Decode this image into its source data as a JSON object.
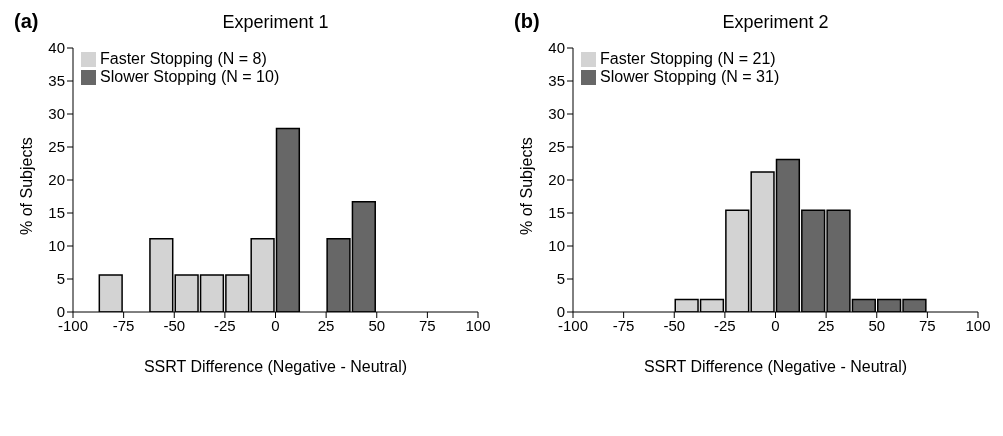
{
  "chart_data": [
    {
      "type": "histogram",
      "title": "Experiment 1",
      "xlabel": "SSRT Difference (Negative - Neutral)",
      "ylabel": "% of Subjects",
      "annotations": [
        "(a)"
      ],
      "bins": [
        -87.5,
        -75,
        -62.5,
        -50,
        -37.5,
        -25,
        -12.5,
        0,
        12.5,
        25,
        37.5,
        50
      ],
      "series": [
        {
          "name": "Slower Stopping (N = 10)",
          "color": "#676767",
          "values": [
            null,
            null,
            null,
            null,
            null,
            null,
            null,
            27.8,
            null,
            11.1,
            16.7
          ]
        },
        {
          "name": "Faster Stopping (N = 8)",
          "color": "#d3d3d3",
          "values": [
            5.6,
            null,
            11.1,
            5.6,
            5.6,
            5.6,
            11.1,
            null,
            null,
            null,
            null
          ]
        }
      ],
      "xlim": [
        -100,
        100
      ],
      "xticks": [
        -100,
        -75,
        -50,
        -25,
        0,
        25,
        50,
        75,
        100
      ],
      "ylim": [
        0,
        40
      ],
      "yticks": [
        0,
        5,
        10,
        15,
        20,
        25,
        30,
        35,
        40
      ],
      "grid": false,
      "legend": "top left"
    },
    {
      "type": "histogram",
      "title": "Experiment 2",
      "xlabel": "SSRT Difference (Negative - Neutral)",
      "ylabel": "% of Subjects",
      "annotations": [
        "(b)"
      ],
      "bins": [
        -50,
        -37.5,
        -25,
        -12.5,
        0,
        12.5,
        25,
        37.5,
        50,
        62.5,
        75
      ],
      "series": [
        {
          "name": "Slower Stopping (N = 31)",
          "color": "#676767",
          "values": [
            null,
            null,
            null,
            null,
            23.1,
            15.4,
            15.4,
            1.9,
            1.9,
            1.9
          ]
        },
        {
          "name": "Faster Stopping (N = 21)",
          "color": "#d3d3d3",
          "values": [
            1.9,
            1.9,
            15.4,
            21.2,
            null,
            null,
            null,
            null,
            null,
            null
          ]
        }
      ],
      "xlim": [
        -100,
        100
      ],
      "xticks": [
        -100,
        -75,
        -50,
        -25,
        0,
        25,
        50,
        75,
        100
      ],
      "ylim": [
        0,
        40
      ],
      "yticks": [
        0,
        5,
        10,
        15,
        20,
        25,
        30,
        35,
        40
      ],
      "grid": false,
      "legend": "top left"
    }
  ]
}
